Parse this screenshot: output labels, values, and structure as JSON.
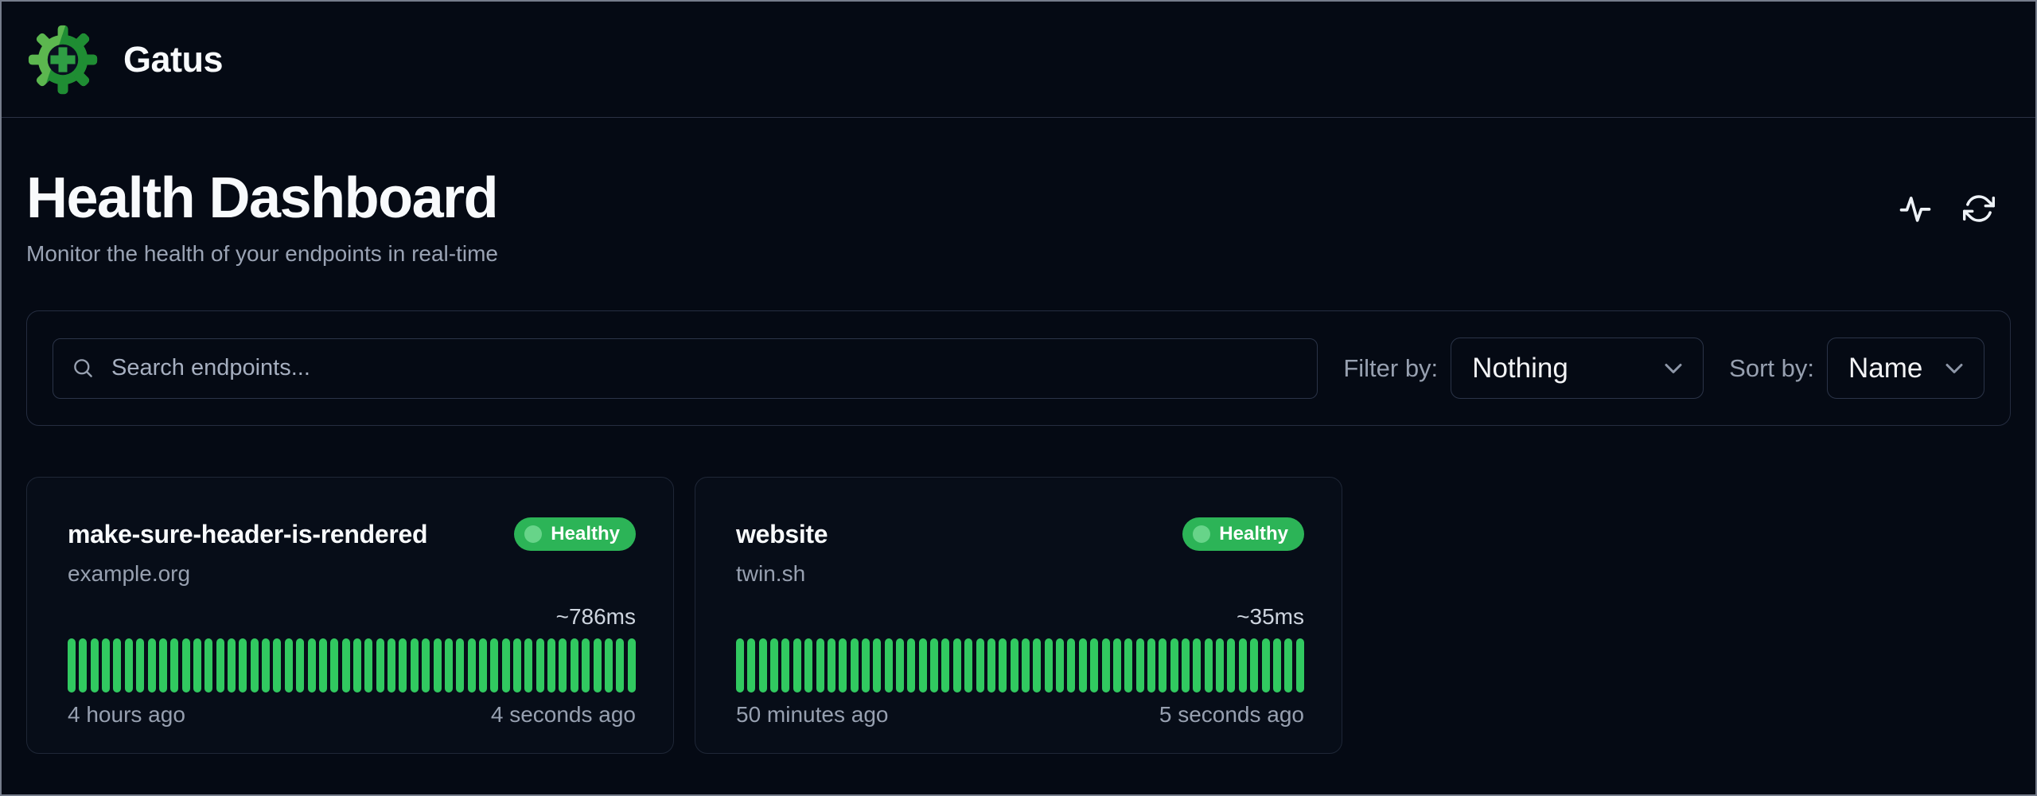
{
  "navbar": {
    "brand": "Gatus"
  },
  "header": {
    "title": "Health Dashboard",
    "subtitle": "Monitor the health of your endpoints in real-time"
  },
  "header_actions": {
    "activity_icon": "activity-pulse-icon",
    "refresh_icon": "refresh-icon"
  },
  "toolbar": {
    "search_placeholder": "Search endpoints...",
    "search_value": "",
    "search_icon": "search-icon",
    "filter_label": "Filter by:",
    "filter_value": "Nothing",
    "sort_label": "Sort by:",
    "sort_value": "Name",
    "chevron_icon": "chevron-down-icon"
  },
  "colors": {
    "background": "#050a14",
    "card_border": "#1f2737",
    "healthy_badge": "#2cb457",
    "badge_dot": "#67d489",
    "bar_success": "#31c960",
    "brand_green_light": "#5cb74f",
    "brand_green_dark": "#1f8d33"
  },
  "endpoints": [
    {
      "name": "make-sure-header-is-rendered",
      "group": "example.org",
      "status": "Healthy",
      "avg_response": "~786ms",
      "oldest_result": "4 hours ago",
      "newest_result": "4 seconds ago",
      "history": {
        "bar_count": 50,
        "all_status": "success"
      }
    },
    {
      "name": "website",
      "group": "twin.sh",
      "status": "Healthy",
      "avg_response": "~35ms",
      "oldest_result": "50 minutes ago",
      "newest_result": "5 seconds ago",
      "history": {
        "bar_count": 50,
        "all_status": "success"
      }
    }
  ]
}
